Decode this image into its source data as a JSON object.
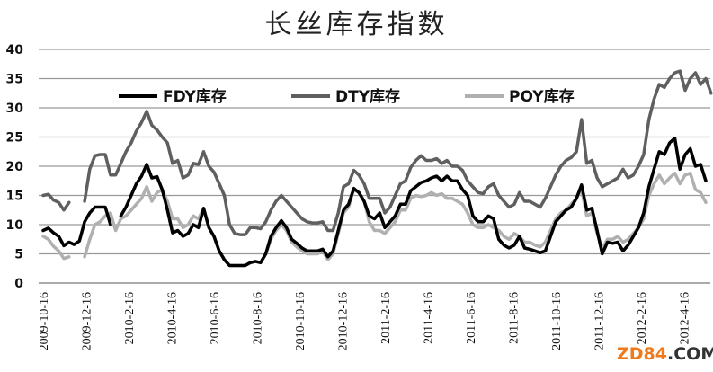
{
  "chart_data": {
    "type": "line",
    "title": "长丝库存指数",
    "xlabel": "",
    "ylabel": "",
    "ylim": [
      0,
      40
    ],
    "yticks": [
      0,
      5,
      10,
      15,
      20,
      25,
      30,
      35,
      40
    ],
    "grid": true,
    "legend_position": "top-inside",
    "x_tick_labels": [
      "2009-10-16",
      "2009-12-16",
      "2010-2-16",
      "2010-4-16",
      "2010-6-16",
      "2010-8-16",
      "2010-10-16",
      "2010-12-16",
      "2011-2-16",
      "2011-4-16",
      "2011-6-16",
      "2011-8-16",
      "2011-10-16",
      "2011-12-16",
      "2012-2-16",
      "2012-4-16"
    ],
    "series": [
      {
        "name": "FDY库存",
        "color": "#000000",
        "values": [
          9.0,
          9.4,
          8.6,
          8.0,
          6.4,
          7.0,
          6.6,
          7.2,
          10.5,
          12.0,
          13.0,
          13.0,
          13.0,
          10.0,
          null,
          11.5,
          13.0,
          15.0,
          17.0,
          18.3,
          20.3,
          18.0,
          18.2,
          16.0,
          12.5,
          8.6,
          9.0,
          8.0,
          8.5,
          10.0,
          9.5,
          12.8,
          9.5,
          8.0,
          5.5,
          4.0,
          3.0,
          3.0,
          3.0,
          3.0,
          3.5,
          3.7,
          3.5,
          5.0,
          8.0,
          9.5,
          10.7,
          9.5,
          7.5,
          6.8,
          6.0,
          5.5,
          5.5,
          5.5,
          5.8,
          4.5,
          5.5,
          9.0,
          12.5,
          13.5,
          16.2,
          15.5,
          14.0,
          11.5,
          11.0,
          12.0,
          9.5,
          10.5,
          11.5,
          13.5,
          13.5,
          15.8,
          16.5,
          17.2,
          17.5,
          18.0,
          18.3,
          17.5,
          18.3,
          17.5,
          17.5,
          16.0,
          15.0,
          11.5,
          10.5,
          10.5,
          11.5,
          11.0,
          7.5,
          6.5,
          6.0,
          6.5,
          8.0,
          6.0,
          5.8,
          5.5,
          5.2,
          5.5,
          8.0,
          10.5,
          11.5,
          12.5,
          13.0,
          14.5,
          16.8,
          12.5,
          12.8,
          9.0,
          5.0,
          7.0,
          6.8,
          7.0,
          5.5,
          6.5,
          8.0,
          9.5,
          12.0,
          16.5,
          19.5,
          22.5,
          22.0,
          24.0,
          24.8,
          19.5,
          22.0,
          23.0,
          20.0,
          20.3,
          17.5
        ]
      },
      {
        "name": "DTY库存",
        "color": "#5f5f5f",
        "values": [
          15.0,
          15.2,
          14.2,
          13.8,
          12.5,
          13.8,
          null,
          null,
          14.0,
          19.5,
          21.8,
          22.0,
          22.0,
          18.5,
          18.5,
          20.5,
          22.5,
          24.0,
          26.0,
          27.5,
          29.4,
          27.0,
          26.2,
          25.0,
          24.0,
          20.5,
          21.0,
          18.0,
          18.5,
          20.5,
          20.3,
          22.5,
          20.0,
          19.0,
          17.0,
          15.0,
          10.0,
          8.5,
          8.3,
          8.3,
          9.5,
          9.5,
          9.3,
          10.5,
          12.5,
          14.0,
          15.0,
          14.0,
          13.0,
          12.0,
          11.0,
          10.5,
          10.3,
          10.3,
          10.5,
          9.0,
          9.0,
          12.0,
          16.5,
          17.0,
          19.3,
          18.5,
          17.0,
          14.5,
          14.5,
          14.5,
          12.0,
          13.0,
          15.0,
          17.0,
          17.5,
          19.8,
          21.0,
          21.8,
          21.0,
          21.0,
          21.3,
          20.5,
          21.0,
          20.0,
          20.0,
          19.3,
          17.5,
          16.5,
          15.5,
          15.3,
          16.5,
          17.0,
          15.0,
          14.0,
          13.0,
          13.5,
          15.5,
          14.0,
          14.0,
          13.5,
          13.0,
          14.5,
          16.5,
          18.5,
          20.0,
          21.0,
          21.5,
          22.5,
          28.0,
          20.5,
          21.0,
          18.0,
          16.5,
          17.0,
          17.5,
          18.0,
          19.5,
          18.0,
          18.5,
          20.0,
          22.0,
          28.0,
          31.5,
          34.0,
          33.5,
          35.0,
          36.0,
          36.3,
          33.0,
          35.0,
          36.0,
          34.0,
          35.0,
          32.5
        ]
      },
      {
        "name": "POY库存",
        "color": "#b0b0b0",
        "values": [
          8.0,
          7.5,
          6.3,
          5.5,
          4.2,
          4.5,
          null,
          null,
          4.5,
          7.5,
          10.0,
          10.5,
          11.5,
          12.0,
          9.0,
          11.0,
          11.5,
          12.5,
          13.5,
          14.5,
          16.5,
          14.0,
          15.5,
          16.0,
          14.0,
          11.0,
          11.0,
          9.5,
          10.0,
          11.5,
          11.0,
          12.8,
          9.5,
          8.0,
          5.5,
          4.0,
          3.0,
          3.0,
          3.0,
          3.0,
          3.5,
          3.7,
          3.5,
          5.0,
          7.5,
          9.0,
          10.0,
          9.0,
          7.0,
          6.2,
          5.5,
          5.0,
          5.0,
          5.0,
          5.5,
          4.0,
          5.0,
          8.5,
          12.0,
          13.0,
          16.0,
          15.5,
          14.0,
          10.5,
          9.0,
          9.0,
          8.5,
          9.5,
          10.5,
          12.5,
          12.5,
          14.5,
          15.0,
          14.8,
          15.0,
          15.5,
          15.0,
          15.3,
          14.5,
          14.5,
          14.0,
          13.5,
          12.0,
          10.0,
          9.5,
          9.5,
          10.0,
          9.5,
          9.0,
          8.0,
          7.5,
          8.5,
          8.0,
          7.0,
          7.0,
          6.5,
          6.2,
          7.0,
          9.0,
          11.0,
          12.0,
          12.5,
          13.5,
          14.5,
          16.0,
          11.5,
          12.0,
          8.5,
          6.0,
          7.5,
          7.5,
          8.0,
          7.0,
          7.5,
          8.5,
          9.5,
          11.0,
          15.0,
          17.0,
          18.5,
          17.0,
          18.0,
          18.8,
          17.0,
          18.5,
          18.8,
          16.0,
          15.5,
          13.8
        ]
      }
    ]
  },
  "watermark": {
    "part_a": "ZD84",
    "part_b": ".COM"
  }
}
